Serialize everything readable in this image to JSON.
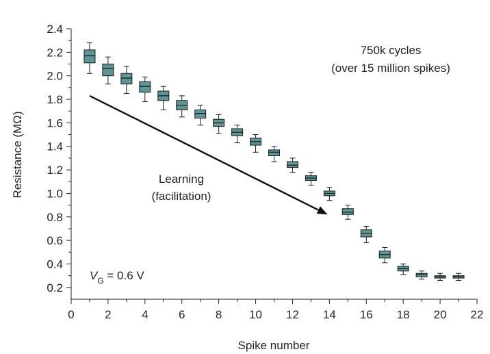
{
  "chart_data": {
    "type": "box",
    "xlabel": "Spike number",
    "ylabel": "Resistance (MΩ)",
    "xlim": [
      0,
      22
    ],
    "ylim": [
      0.1,
      2.4
    ],
    "xticks": [
      0,
      2,
      4,
      6,
      8,
      10,
      12,
      14,
      16,
      18,
      20,
      22
    ],
    "yticks": [
      0.2,
      0.4,
      0.6,
      0.8,
      1.0,
      1.2,
      1.4,
      1.6,
      1.8,
      2.0,
      2.2,
      2.4
    ],
    "xtick_labels": [
      "0",
      "2",
      "4",
      "6",
      "8",
      "10",
      "12",
      "14",
      "16",
      "18",
      "20",
      "22"
    ],
    "ytick_labels": [
      "0.2",
      "0.4",
      "0.6",
      "0.8",
      "1.0",
      "1.2",
      "1.4",
      "1.6",
      "1.8",
      "2.0",
      "2.2",
      "2.4"
    ],
    "grid": false,
    "box_color": "#5f9595",
    "box_edge_color": "#1a1a1a",
    "boxes": [
      {
        "x": 1,
        "min": 2.02,
        "q1": 2.11,
        "median": 2.17,
        "q3": 2.22,
        "max": 2.28
      },
      {
        "x": 2,
        "min": 1.93,
        "q1": 2.0,
        "median": 2.06,
        "q3": 2.1,
        "max": 2.16
      },
      {
        "x": 3,
        "min": 1.85,
        "q1": 1.93,
        "median": 1.98,
        "q3": 2.02,
        "max": 2.08
      },
      {
        "x": 4,
        "min": 1.78,
        "q1": 1.86,
        "median": 1.91,
        "q3": 1.95,
        "max": 1.99
      },
      {
        "x": 5,
        "min": 1.71,
        "q1": 1.79,
        "median": 1.83,
        "q3": 1.87,
        "max": 1.91
      },
      {
        "x": 6,
        "min": 1.65,
        "q1": 1.71,
        "median": 1.75,
        "q3": 1.79,
        "max": 1.83
      },
      {
        "x": 7,
        "min": 1.58,
        "q1": 1.64,
        "median": 1.68,
        "q3": 1.71,
        "max": 1.75
      },
      {
        "x": 8,
        "min": 1.51,
        "q1": 1.57,
        "median": 1.6,
        "q3": 1.63,
        "max": 1.67
      },
      {
        "x": 9,
        "min": 1.43,
        "q1": 1.49,
        "median": 1.52,
        "q3": 1.55,
        "max": 1.58
      },
      {
        "x": 10,
        "min": 1.35,
        "q1": 1.41,
        "median": 1.44,
        "q3": 1.47,
        "max": 1.5
      },
      {
        "x": 11,
        "min": 1.27,
        "q1": 1.32,
        "median": 1.35,
        "q3": 1.37,
        "max": 1.4
      },
      {
        "x": 12,
        "min": 1.18,
        "q1": 1.22,
        "median": 1.24,
        "q3": 1.27,
        "max": 1.3
      },
      {
        "x": 13,
        "min": 1.07,
        "q1": 1.11,
        "median": 1.13,
        "q3": 1.15,
        "max": 1.18
      },
      {
        "x": 14,
        "min": 0.94,
        "q1": 0.98,
        "median": 1.0,
        "q3": 1.02,
        "max": 1.05
      },
      {
        "x": 15,
        "min": 0.78,
        "q1": 0.82,
        "median": 0.84,
        "q3": 0.87,
        "max": 0.9
      },
      {
        "x": 16,
        "min": 0.58,
        "q1": 0.63,
        "median": 0.66,
        "q3": 0.69,
        "max": 0.72
      },
      {
        "x": 17,
        "min": 0.41,
        "q1": 0.45,
        "median": 0.48,
        "q3": 0.51,
        "max": 0.54
      },
      {
        "x": 18,
        "min": 0.31,
        "q1": 0.34,
        "median": 0.36,
        "q3": 0.38,
        "max": 0.4
      },
      {
        "x": 19,
        "min": 0.27,
        "q1": 0.29,
        "median": 0.31,
        "q3": 0.32,
        "max": 0.34
      },
      {
        "x": 20,
        "min": 0.26,
        "q1": 0.28,
        "median": 0.29,
        "q3": 0.3,
        "max": 0.32
      },
      {
        "x": 21,
        "min": 0.26,
        "q1": 0.28,
        "median": 0.29,
        "q3": 0.3,
        "max": 0.32
      }
    ],
    "annotations": {
      "cycles_line1": "750k cycles",
      "cycles_line2": "(over 15 million spikes)",
      "learning_line1": "Learning",
      "learning_line2": "(facilitation)",
      "vg_symbol": "V",
      "vg_subscript": "G",
      "vg_value": " = 0.6 V"
    },
    "arrow": {
      "from": [
        1,
        1.83
      ],
      "to": [
        13.9,
        0.82
      ]
    }
  }
}
